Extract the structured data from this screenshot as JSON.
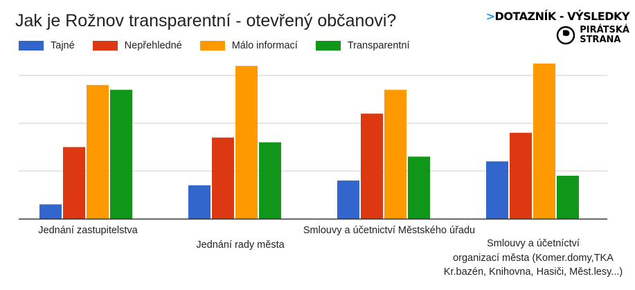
{
  "logo": {
    "line1": "DOTAZNÍK - VÝSLEDKY",
    "line2a": "PIRÁTSKÁ",
    "line2b": "STRANA"
  },
  "chart_data": {
    "type": "bar",
    "title": "Jak je Rožnov transparentní - otevřený občanovi?",
    "categories": [
      "Jednání zastupitelstva",
      "Jednání rady města",
      "Smlouvy a účetnictví Městského úřadu",
      "Smlouvy a účetníctví organizací města (Komer.domy,TKA Kr.bazén, Knihovna, Hasiči, Měst.lesy...)"
    ],
    "category_lines": [
      [
        "Jednání zastupitelstva"
      ],
      [
        "Jednání rady města"
      ],
      [
        "Smlouvy a účetnictví Městského úřadu"
      ],
      [
        "Smlouvy a účetníctví",
        "organizací města (Komer.domy,TKA",
        "Kr.bazén, Knihovna, Hasiči, Měst.lesy...)"
      ]
    ],
    "series": [
      {
        "name": "Tajné",
        "color": "#3366cc",
        "values": [
          3,
          7,
          8,
          12
        ]
      },
      {
        "name": "Nepřehledné",
        "color": "#dc3912",
        "values": [
          15,
          17,
          22,
          18
        ]
      },
      {
        "name": "Málo informací",
        "color": "#ff9900",
        "values": [
          28,
          32,
          27,
          32.5
        ]
      },
      {
        "name": "Transparentní",
        "color": "#109618",
        "values": [
          27,
          16,
          13,
          9
        ]
      }
    ],
    "ylim": [
      0,
      33
    ],
    "gridlines": [
      10,
      20,
      30
    ],
    "grid": true,
    "legend": "top-left",
    "xlabel": "",
    "ylabel": ""
  }
}
